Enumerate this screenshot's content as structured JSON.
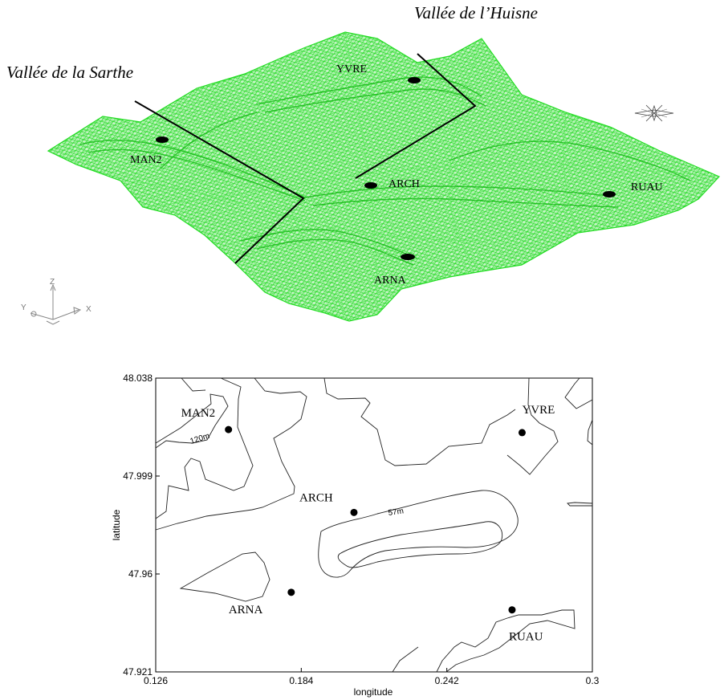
{
  "top_view": {
    "valley_labels": {
      "huisne": "Vallée de l’Huisne",
      "sarthe": "Vallée de la Sarthe"
    },
    "stations": [
      "YVRE",
      "MAN2",
      "ARCH",
      "RUAU",
      "ARNA"
    ],
    "axis_triad": {
      "z": "Z",
      "y": "Y",
      "x": "X"
    },
    "mesh_color": "#22dd22"
  },
  "map": {
    "xlabel": "longitude",
    "ylabel": "latitude",
    "xlim": [
      0.126,
      0.3
    ],
    "ylim": [
      47.921,
      48.038
    ],
    "x_ticks": [
      "0.126",
      "0.184",
      "0.242",
      "0.3"
    ],
    "y_ticks": [
      "48.038",
      "47.999",
      "47.96",
      "47.921"
    ],
    "contour_labels": [
      "120m",
      "57m"
    ],
    "stations": [
      {
        "name": "MAN2",
        "lon": 0.155,
        "lat": 48.0175
      },
      {
        "name": "YVRE",
        "lon": 0.272,
        "lat": 48.0163
      },
      {
        "name": "ARCH",
        "lon": 0.205,
        "lat": 47.9845
      },
      {
        "name": "ARNA",
        "lon": 0.18,
        "lat": 47.9527
      },
      {
        "name": "RUAU",
        "lon": 0.268,
        "lat": 47.9457
      }
    ]
  }
}
